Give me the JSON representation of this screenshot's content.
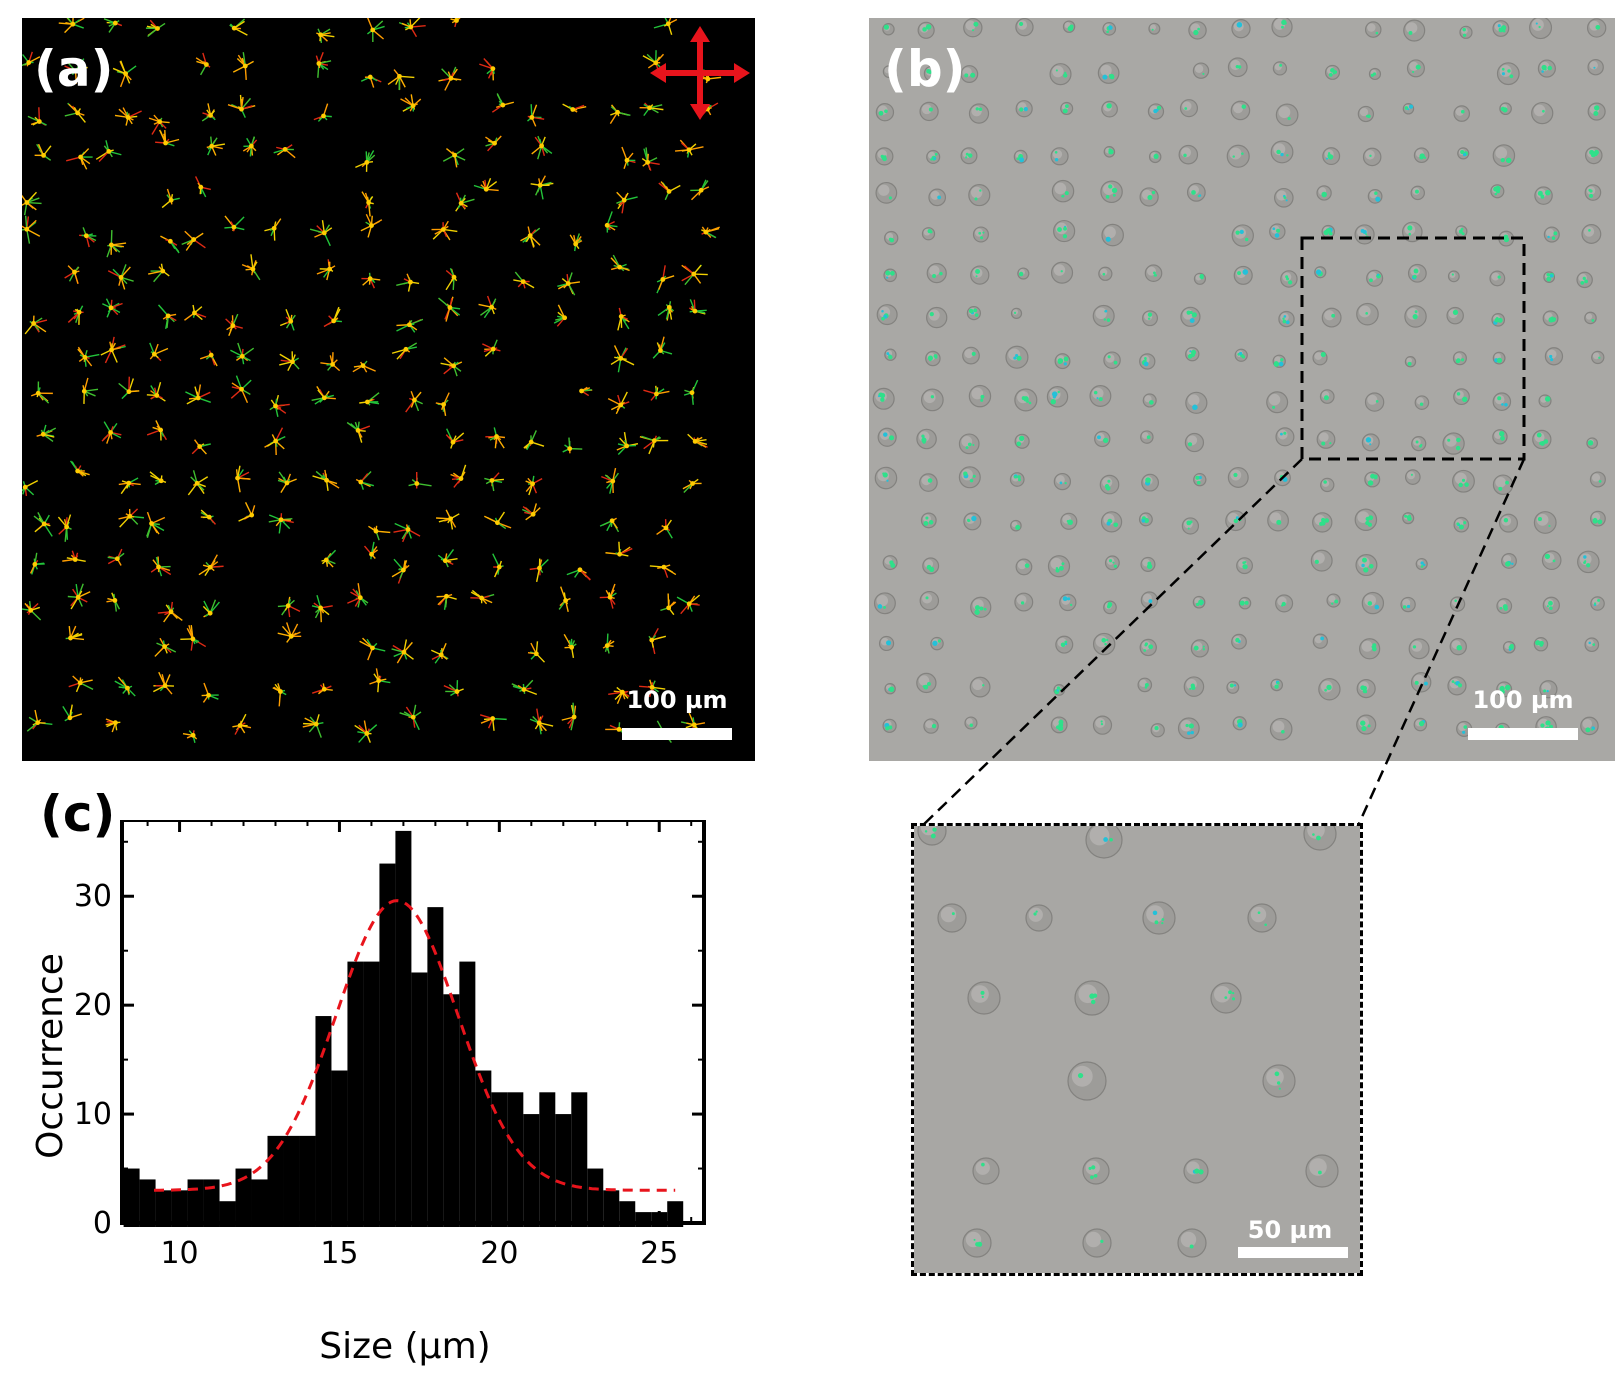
{
  "panels": {
    "a": {
      "label": "(a)",
      "scale_bar": "100 µm",
      "polarizer_icon": "crossed-arrows-icon"
    },
    "b": {
      "label": "(b)",
      "scale_bar": "100 µm",
      "zoom_scale_bar": "50 µm"
    },
    "c": {
      "label": "(c)"
    }
  },
  "chart_data": {
    "type": "bar",
    "xlabel": "Size (µm)",
    "ylabel": "Occurrence",
    "xlim": [
      8.2,
      26.4
    ],
    "ylim": [
      0,
      37
    ],
    "xticks": [
      10,
      15,
      20,
      25
    ],
    "yticks": [
      0,
      10,
      20,
      30
    ],
    "bin_width": 0.5,
    "bins": [
      {
        "x": 8.5,
        "y": 5
      },
      {
        "x": 9.0,
        "y": 4
      },
      {
        "x": 9.5,
        "y": 3
      },
      {
        "x": 10.0,
        "y": 3
      },
      {
        "x": 10.5,
        "y": 4
      },
      {
        "x": 11.0,
        "y": 4
      },
      {
        "x": 11.5,
        "y": 2
      },
      {
        "x": 12.0,
        "y": 5
      },
      {
        "x": 12.5,
        "y": 4
      },
      {
        "x": 13.0,
        "y": 8
      },
      {
        "x": 13.5,
        "y": 8
      },
      {
        "x": 14.0,
        "y": 8
      },
      {
        "x": 14.5,
        "y": 19
      },
      {
        "x": 15.0,
        "y": 14
      },
      {
        "x": 15.5,
        "y": 24
      },
      {
        "x": 16.0,
        "y": 24
      },
      {
        "x": 16.5,
        "y": 33
      },
      {
        "x": 17.0,
        "y": 36
      },
      {
        "x": 17.5,
        "y": 23
      },
      {
        "x": 18.0,
        "y": 29
      },
      {
        "x": 18.5,
        "y": 21
      },
      {
        "x": 19.0,
        "y": 24
      },
      {
        "x": 19.5,
        "y": 14
      },
      {
        "x": 20.0,
        "y": 12
      },
      {
        "x": 20.5,
        "y": 12
      },
      {
        "x": 21.0,
        "y": 10
      },
      {
        "x": 21.5,
        "y": 12
      },
      {
        "x": 22.0,
        "y": 10
      },
      {
        "x": 22.5,
        "y": 12
      },
      {
        "x": 23.0,
        "y": 5
      },
      {
        "x": 23.5,
        "y": 3
      },
      {
        "x": 24.0,
        "y": 2
      },
      {
        "x": 24.5,
        "y": 1
      },
      {
        "x": 25.0,
        "y": 1
      },
      {
        "x": 25.5,
        "y": 2
      }
    ],
    "fit": {
      "type": "gaussian",
      "style": "dashed",
      "color": "#e8141c",
      "x_start": 9.2,
      "x_end": 25.5,
      "baseline": 3,
      "amplitude": 26.6,
      "center": 16.8,
      "sigma": 1.9
    }
  }
}
